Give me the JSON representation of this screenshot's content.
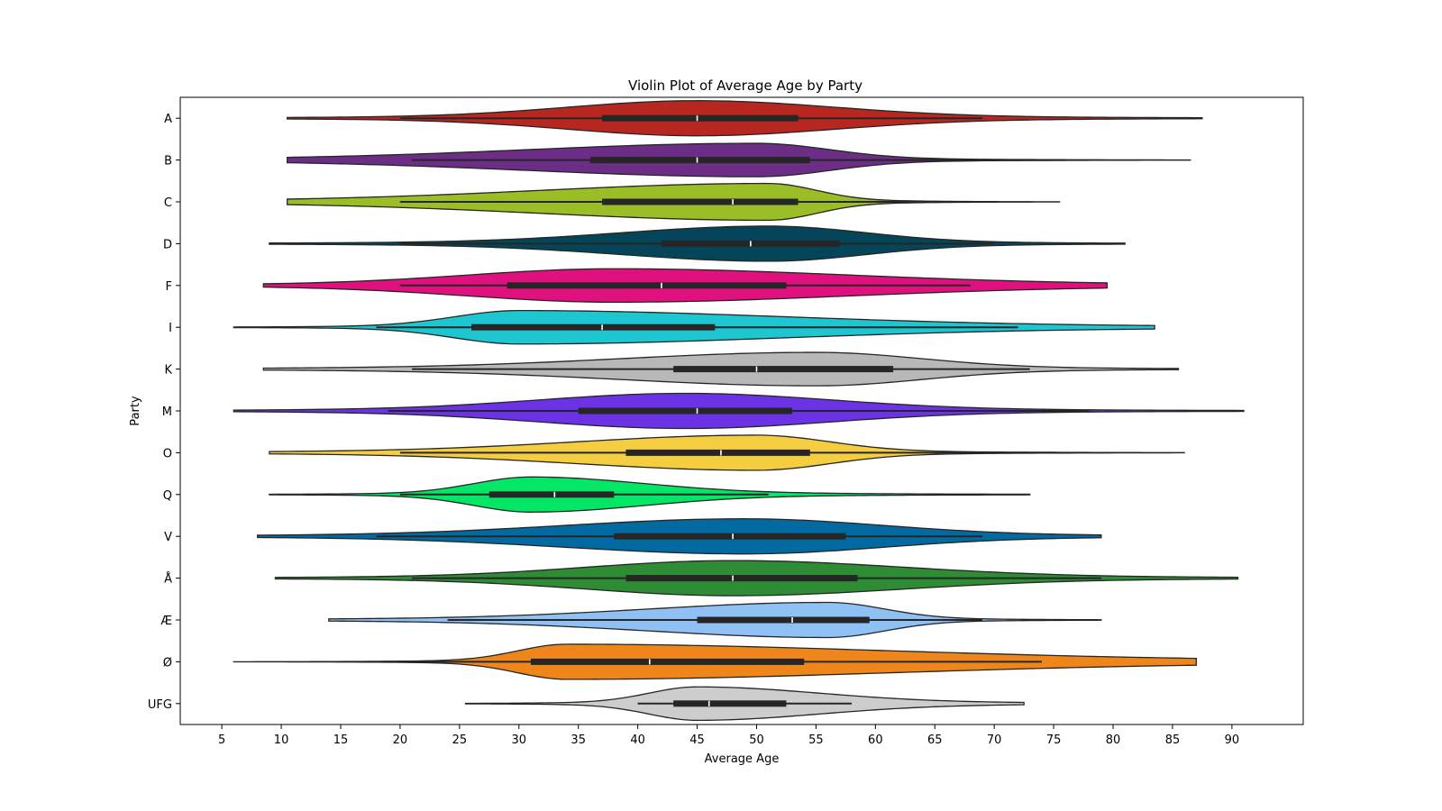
{
  "chart_data": {
    "type": "violin",
    "title": "Violin Plot of Average Age by Party",
    "xlabel": "Average Age",
    "ylabel": "Party",
    "xlim": [
      1.5,
      96.0
    ],
    "xticks": [
      5,
      10,
      15,
      20,
      25,
      30,
      35,
      40,
      45,
      50,
      55,
      60,
      65,
      70,
      75,
      80,
      85,
      90
    ],
    "grid": false,
    "categories": [
      "A",
      "B",
      "C",
      "D",
      "F",
      "I",
      "K",
      "M",
      "O",
      "Q",
      "V",
      "Å",
      "Æ",
      "Ø",
      "UFG"
    ],
    "series": [
      {
        "category": "A",
        "color": "#b82620",
        "min": 10.5,
        "max": 87.5,
        "whisker_low": 20,
        "whisker_high": 69,
        "q1": 37,
        "median": 45,
        "q3": 53.5,
        "mode": 45,
        "peak_width": 0.42
      },
      {
        "category": "B",
        "color": "#6b2d86",
        "min": 10.5,
        "max": 86.5,
        "whisker_low": 21,
        "whisker_high": 76,
        "q1": 36,
        "median": 45,
        "q3": 54.5,
        "mode": 50,
        "peak_width": 0.4
      },
      {
        "category": "C",
        "color": "#9bbd26",
        "min": 10.5,
        "max": 75.5,
        "whisker_low": 20,
        "whisker_high": 66,
        "q1": 37,
        "median": 48,
        "q3": 53.5,
        "mode": 51,
        "peak_width": 0.44
      },
      {
        "category": "D",
        "color": "#04455a",
        "min": 9.0,
        "max": 81.0,
        "whisker_low": 20,
        "whisker_high": 70,
        "q1": 42,
        "median": 49.5,
        "q3": 57,
        "mode": 51,
        "peak_width": 0.42
      },
      {
        "category": "F",
        "color": "#e0117e",
        "min": 8.5,
        "max": 79.5,
        "whisker_low": 20,
        "whisker_high": 68,
        "q1": 29,
        "median": 42,
        "q3": 52.5,
        "mode": 38,
        "peak_width": 0.4
      },
      {
        "category": "I",
        "color": "#1ec6d2",
        "min": 6.0,
        "max": 83.5,
        "whisker_low": 18,
        "whisker_high": 72,
        "q1": 26,
        "median": 37,
        "q3": 46.5,
        "mode": 30,
        "peak_width": 0.4
      },
      {
        "category": "K",
        "color": "#b8b8b8",
        "min": 8.5,
        "max": 85.5,
        "whisker_low": 21,
        "whisker_high": 73,
        "q1": 43,
        "median": 50,
        "q3": 61.5,
        "mode": 55,
        "peak_width": 0.4
      },
      {
        "category": "M",
        "color": "#6c33e6",
        "min": 6.0,
        "max": 91.0,
        "whisker_low": 19,
        "whisker_high": 78,
        "q1": 35,
        "median": 45,
        "q3": 53,
        "mode": 44,
        "peak_width": 0.42
      },
      {
        "category": "O",
        "color": "#f4cd40",
        "min": 9.0,
        "max": 86.0,
        "whisker_low": 20,
        "whisker_high": 75,
        "q1": 39,
        "median": 47,
        "q3": 54.5,
        "mode": 50,
        "peak_width": 0.42
      },
      {
        "category": "Q",
        "color": "#03e666",
        "min": 9.0,
        "max": 73.0,
        "whisker_low": 20,
        "whisker_high": 51,
        "q1": 27.5,
        "median": 33,
        "q3": 38,
        "mode": 31,
        "peak_width": 0.42
      },
      {
        "category": "V",
        "color": "#026aa1",
        "min": 8.0,
        "max": 79.0,
        "whisker_low": 18,
        "whisker_high": 69,
        "q1": 38,
        "median": 48,
        "q3": 57.5,
        "mode": 49,
        "peak_width": 0.42
      },
      {
        "category": "Å",
        "color": "#2d8c34",
        "min": 9.5,
        "max": 90.5,
        "whisker_low": 21,
        "whisker_high": 79,
        "q1": 39,
        "median": 48,
        "q3": 58.5,
        "mode": 48,
        "peak_width": 0.42
      },
      {
        "category": "Æ",
        "color": "#8fc1f5",
        "min": 14.0,
        "max": 79.0,
        "whisker_low": 24,
        "whisker_high": 69,
        "q1": 45,
        "median": 53,
        "q3": 59.5,
        "mode": 56,
        "peak_width": 0.42
      },
      {
        "category": "Ø",
        "color": "#ee861c",
        "min": 6.0,
        "max": 87.0,
        "whisker_low": 19,
        "whisker_high": 74,
        "q1": 31,
        "median": 41,
        "q3": 54,
        "mode": 34,
        "peak_width": 0.42
      },
      {
        "category": "UFG",
        "color": "#cdcdcd",
        "min": 25.5,
        "max": 72.5,
        "whisker_low": 40,
        "whisker_high": 58,
        "q1": 43,
        "median": 46,
        "q3": 52.5,
        "mode": 45,
        "peak_width": 0.4
      }
    ]
  }
}
